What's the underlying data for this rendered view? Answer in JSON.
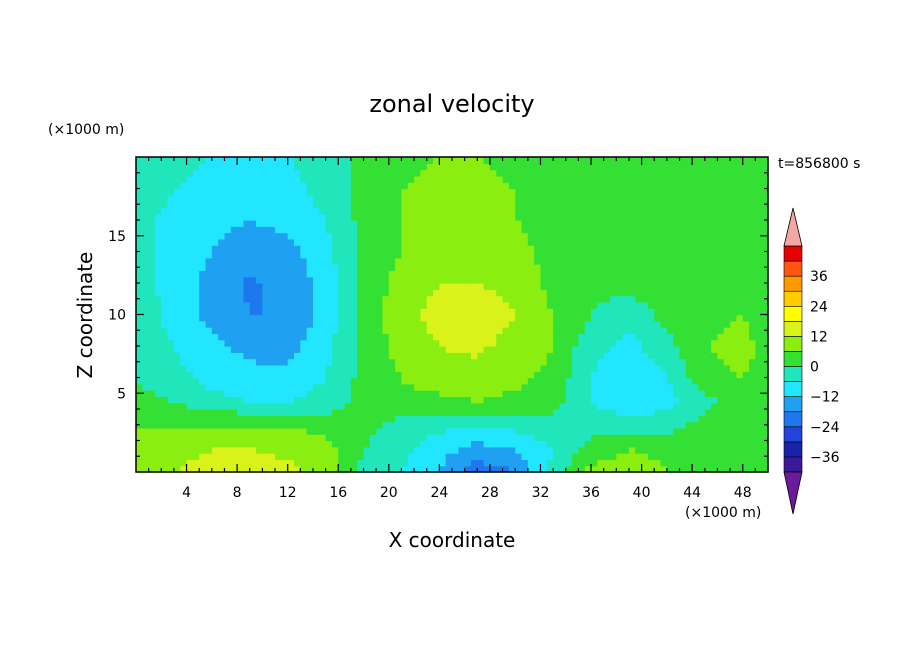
{
  "chart_data": {
    "type": "heatmap",
    "title": "zonal velocity",
    "xlabel": "X coordinate",
    "ylabel": "Z coordinate",
    "x_unit": "(×1000 m)",
    "y_unit": "(×1000 m)",
    "time_label": "t=856800 s",
    "xlim": [
      0,
      50
    ],
    "ylim": [
      0,
      20
    ],
    "x_ticks": [
      4,
      8,
      12,
      16,
      20,
      24,
      28,
      32,
      36,
      40,
      44,
      48
    ],
    "y_ticks": [
      5,
      10,
      15
    ],
    "colorbar": {
      "levels": [
        -42,
        -36,
        -30,
        -24,
        -18,
        -12,
        -6,
        0,
        6,
        12,
        18,
        24,
        30,
        36,
        42
      ],
      "labels": [
        36,
        24,
        12,
        0,
        -12,
        -24,
        -36
      ],
      "colors": [
        "#6a1a9a",
        "#3a1a9a",
        "#1a22aa",
        "#2244dd",
        "#1f77ee",
        "#1fa0f0",
        "#22e6ff",
        "#22e6bb",
        "#35e035",
        "#8aee10",
        "#d8f21a",
        "#ffff00",
        "#ffcc00",
        "#ff9900",
        "#ff5511",
        "#e80000",
        "#f4a7a0"
      ],
      "extend": "both"
    },
    "field": {
      "description_units": "zonal velocity contour field sampled on x (0-50) × z (0-20) grid",
      "x": [
        0,
        3,
        6,
        9,
        12,
        15,
        18,
        21,
        24,
        27,
        30,
        33,
        36,
        39,
        42,
        45,
        48,
        50
      ],
      "z": [
        0,
        1.5,
        3,
        4.5,
        6,
        8,
        10,
        12,
        14,
        16,
        18,
        20
      ],
      "values": [
        [
          10,
          12,
          14,
          15,
          14,
          10,
          -2,
          -6,
          -12,
          -22,
          -18,
          -4,
          8,
          10,
          6,
          2,
          0,
          2
        ],
        [
          8,
          10,
          12,
          12,
          10,
          8,
          0,
          -4,
          -10,
          -14,
          -12,
          -6,
          2,
          6,
          4,
          2,
          2,
          2
        ],
        [
          6,
          6,
          6,
          6,
          6,
          4,
          2,
          -2,
          -4,
          -6,
          -4,
          -2,
          -2,
          -4,
          -2,
          2,
          4,
          4
        ],
        [
          2,
          0,
          -4,
          -6,
          -6,
          -4,
          2,
          4,
          4,
          6,
          4,
          2,
          -6,
          -10,
          -8,
          -2,
          4,
          4
        ],
        [
          0,
          -4,
          -8,
          -10,
          -10,
          -6,
          2,
          6,
          10,
          10,
          8,
          4,
          -6,
          -12,
          -6,
          4,
          6,
          4
        ],
        [
          -2,
          -6,
          -10,
          -14,
          -14,
          -8,
          2,
          8,
          12,
          13,
          10,
          6,
          -4,
          -8,
          -2,
          6,
          8,
          4
        ],
        [
          -2,
          -8,
          -14,
          -18,
          -18,
          -10,
          2,
          10,
          14,
          16,
          12,
          6,
          0,
          -4,
          2,
          4,
          6,
          2
        ],
        [
          -4,
          -8,
          -14,
          -19,
          -16,
          -10,
          2,
          8,
          12,
          12,
          10,
          4,
          2,
          2,
          4,
          4,
          4,
          2
        ],
        [
          -4,
          -8,
          -12,
          -16,
          -14,
          -8,
          2,
          6,
          10,
          10,
          8,
          4,
          2,
          2,
          2,
          2,
          2,
          2
        ],
        [
          -4,
          -8,
          -10,
          -12,
          -10,
          -6,
          2,
          6,
          8,
          8,
          6,
          4,
          2,
          2,
          2,
          2,
          2,
          2
        ],
        [
          -2,
          -6,
          -8,
          -10,
          -8,
          -4,
          2,
          6,
          8,
          8,
          6,
          4,
          2,
          2,
          2,
          2,
          2,
          2
        ],
        [
          -2,
          -4,
          -6,
          -6,
          -6,
          -4,
          2,
          4,
          6,
          6,
          4,
          2,
          2,
          2,
          2,
          2,
          2,
          2
        ]
      ]
    }
  }
}
